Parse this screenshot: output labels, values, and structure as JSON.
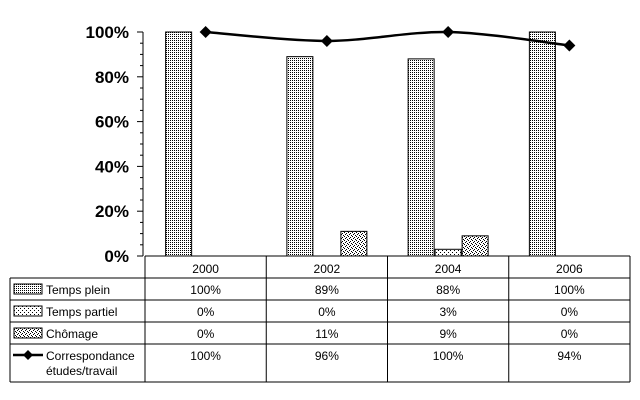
{
  "chart_data": {
    "type": "bar",
    "title": "",
    "xlabel": "",
    "ylabel": "",
    "ylim": [
      0,
      100
    ],
    "y_ticks": [
      "0%",
      "20%",
      "40%",
      "60%",
      "80%",
      "100%"
    ],
    "categories": [
      "2000",
      "2002",
      "2004",
      "2006"
    ],
    "series": [
      {
        "name": "Temps plein",
        "kind": "bar",
        "pattern": "dense-dots",
        "values": [
          100,
          89,
          88,
          100
        ],
        "labels": [
          "100%",
          "89%",
          "88%",
          "100%"
        ]
      },
      {
        "name": "Temps partiel",
        "kind": "bar",
        "pattern": "sparse-dots",
        "values": [
          0,
          0,
          3,
          0
        ],
        "labels": [
          "0%",
          "0%",
          "3%",
          "0%"
        ]
      },
      {
        "name": "Chômage",
        "kind": "bar",
        "pattern": "stipple",
        "values": [
          0,
          11,
          9,
          0
        ],
        "labels": [
          "0%",
          "11%",
          "9%",
          "0%"
        ]
      },
      {
        "name": "Correspondance études/travail",
        "name_lines": [
          "Correspondance",
          "études/travail"
        ],
        "kind": "line",
        "marker": "diamond",
        "values": [
          100,
          96,
          100,
          94
        ],
        "labels": [
          "100%",
          "96%",
          "100%",
          "94%"
        ]
      }
    ],
    "grid": false,
    "legend": "data-table",
    "colors": {
      "line": "#000000",
      "bar_fill": "#ffffff",
      "bar_dots": "#000000"
    }
  }
}
